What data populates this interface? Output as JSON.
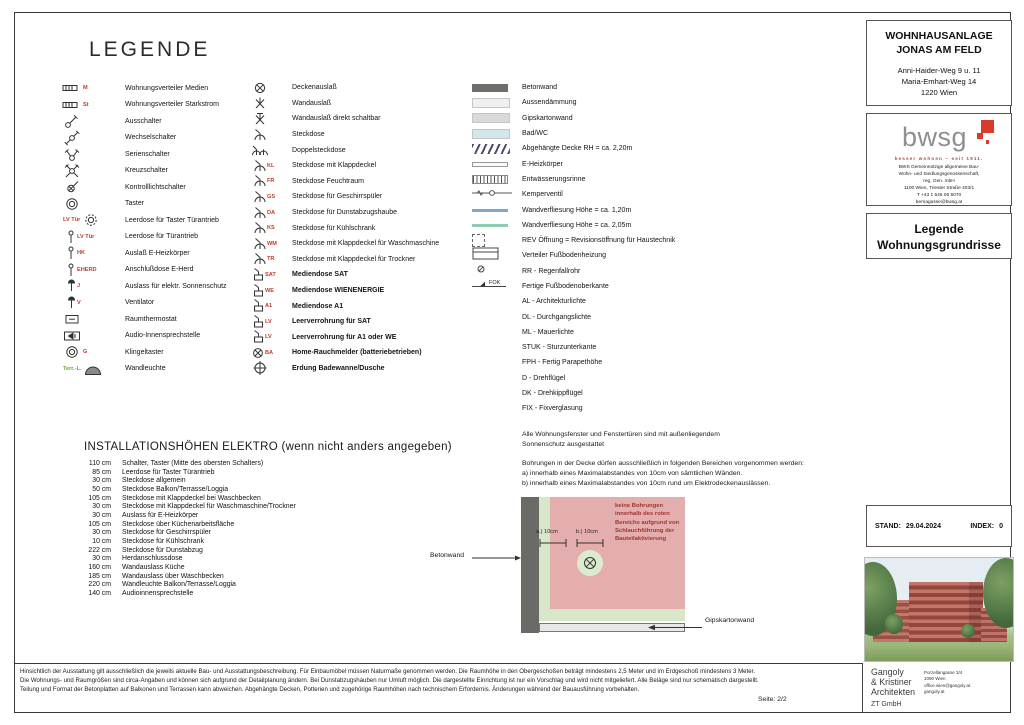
{
  "legend_title": "LEGENDE",
  "legend_col1": [
    {
      "icon": "verteiler",
      "tag": "M",
      "label": "Wohnungsverteiler Medien"
    },
    {
      "icon": "verteiler",
      "tag": "St",
      "label": "Wohnungsverteiler Starkstrom"
    },
    {
      "icon": "ausschalter",
      "label": "Ausschalter"
    },
    {
      "icon": "wechselschalter",
      "label": "Wechselschalter"
    },
    {
      "icon": "serienschalter",
      "label": "Serienschalter"
    },
    {
      "icon": "kreuzschalter",
      "label": "Kreuzschalter"
    },
    {
      "icon": "kontrolllichtschalter",
      "label": "Kontrolllichtschalter"
    },
    {
      "icon": "taster",
      "label": "Taster"
    },
    {
      "icon": "taster-dashed",
      "tag": "LV Tür",
      "tagpos": "prefix",
      "label": "Leerdose für Taster Türantrieb"
    },
    {
      "icon": "pin",
      "tag": "LV Tür",
      "label": "Leerdose für Türantrieb"
    },
    {
      "icon": "pin",
      "tag": "HK",
      "label": "Auslaß E-Heizkörper"
    },
    {
      "icon": "pin",
      "tag": "EHERD",
      "label": "Anschlußdose E-Herd"
    },
    {
      "icon": "dot-stem",
      "tag": "J",
      "label": "Auslass für elektr. Sonnenschutz"
    },
    {
      "icon": "dot-stem",
      "tag": "V",
      "label": "Ventilator"
    },
    {
      "icon": "raumthermostat",
      "label": "Raumthermostat"
    },
    {
      "icon": "audio",
      "label": "Audio-Innensprechstelle"
    },
    {
      "icon": "taster",
      "tag": "G",
      "label": "Klingeltaster"
    },
    {
      "icon": "wandleuchte",
      "tag": "Terr.-L.",
      "tagpos": "prefix",
      "taggreen": true,
      "label": "Wandleuchte"
    }
  ],
  "legend_col2": [
    {
      "icon": "deckenauslass",
      "label": "Deckenauslaß"
    },
    {
      "icon": "wandauslass",
      "label": "Wandauslaß"
    },
    {
      "icon": "wandauslass-schaltbar",
      "label": "Wandauslaß direkt schaltbar"
    },
    {
      "icon": "steckdose",
      "label": "Steckdose"
    },
    {
      "icon": "doppelsteckdose",
      "label": "Doppelsteckdose"
    },
    {
      "icon": "steckdose",
      "tag": "KL",
      "label": "Steckdose mit Klappdeckel"
    },
    {
      "icon": "steckdose",
      "tag": "FR",
      "label": "Steckdose Feuchtraum"
    },
    {
      "icon": "steckdose",
      "tag": "GS",
      "label": "Steckdose für Geschirrspüler"
    },
    {
      "icon": "steckdose",
      "tag": "DA",
      "label": "Steckdose für Dunstabzugshaube"
    },
    {
      "icon": "steckdose",
      "tag": "KS",
      "label": "Steckdose für Kühlschrank"
    },
    {
      "icon": "steckdose",
      "tag": "WM",
      "label": "Steckdose mit Klappdeckel für Waschmaschine"
    },
    {
      "icon": "steckdose",
      "tag": "TR",
      "label": "Steckdose mit Klappdeckel für Trockner"
    },
    {
      "icon": "mediendose",
      "tag": "SAT",
      "label": "Mediendose SAT",
      "bold": true
    },
    {
      "icon": "mediendose",
      "tag": "WE",
      "label": "Mediendose WIENENERGIE",
      "bold": true
    },
    {
      "icon": "mediendose",
      "tag": "A1",
      "label": "Mediendose A1",
      "bold": true
    },
    {
      "icon": "mediendose",
      "tag": "LV",
      "label": "Leerverrohrung für SAT",
      "bold": true
    },
    {
      "icon": "mediendose",
      "tag": "LV",
      "label": "Leerverrohrung für A1 oder WE",
      "bold": true
    },
    {
      "icon": "rauchmelder",
      "tag": "BA",
      "label": "Home-Rauchmelder (batteriebetrieben)",
      "bold": true
    },
    {
      "icon": "erdung",
      "label": "Erdung Badewanne/Dusche",
      "bold": true
    }
  ],
  "legend_col3": [
    {
      "swatch": "solid",
      "color": "#6e6e6a",
      "label": "Betonwand"
    },
    {
      "swatch": "solid",
      "color": "#f0f0ee",
      "label": "Aussendämmung"
    },
    {
      "swatch": "solid",
      "color": "#d9d9d9",
      "label": "Gipskartonwand"
    },
    {
      "swatch": "solid",
      "color": "#d2e6ec",
      "label": "Bad/WC"
    },
    {
      "swatch": "hatch-diag",
      "label": "Abgehängte Decke RH = ca. 2,20m"
    },
    {
      "swatch": "heizkoerper",
      "label": "E-Heizkörper"
    },
    {
      "swatch": "hatch-vert",
      "label": "Entwässerungsrinne"
    },
    {
      "swatch": "kemperventil",
      "label": "Kemperventil"
    },
    {
      "swatch": "line",
      "color": "#7fa8c9",
      "label": "Wandverfliesung Höhe = ca. 1,20m"
    },
    {
      "swatch": "line",
      "color": "#8fcbb0",
      "label": "Wandverfliesung Höhe = ca. 2,05m"
    },
    {
      "swatch": "rev",
      "label": "REV Öffnung = Revisionsöffnung für Haustechnik"
    },
    {
      "swatch": "fbh",
      "label": "Verteiler Fußbodenheizung"
    },
    {
      "swatch": "rr",
      "label": "RR - Regenfallrohr"
    },
    {
      "swatch": "fok",
      "label": "Fertige Fußbodenoberkante"
    },
    {
      "swatch": "none",
      "label": "AL - Architekturlichte"
    },
    {
      "swatch": "none",
      "label": "DL - Durchgangslichte"
    },
    {
      "swatch": "none",
      "label": "ML - Mauerlichte"
    },
    {
      "swatch": "none",
      "label": "STUK - Sturzunterkante"
    },
    {
      "swatch": "none",
      "label": "FPH - Fertig Parapethöhe"
    },
    {
      "swatch": "none",
      "label": "D - Drehflügel"
    },
    {
      "swatch": "none",
      "label": "DK - Drehkippflügel"
    },
    {
      "swatch": "none",
      "label": "FIX - Fixverglasung"
    }
  ],
  "notes": {
    "sonnenschutz_1": "Alle Wohnungsfenster und Fenstertüren sind mit außenliegendem",
    "sonnenschutz_2": "Sonnenschutz ausgestattet",
    "bohrungen_title": "Bohrungen in der Decke dürfen ausschließlich in folgenden Bereichen vorgenommen werden:",
    "bohrungen_a": "a) innerhalb eines Maximalabstandes von 10cm von sämtlichen Wänden.",
    "bohrungen_b": "b) innerhalb eines Maximalabstandes von 10cm rund um Elektrodeckenauslässen."
  },
  "install": {
    "title": "INSTALLATIONSHÖHEN ELEKTRO (wenn nicht anders angegeben)",
    "rows": [
      {
        "height": "110 cm",
        "label": "Schalter, Taster (Mitte des obersten Schalters)"
      },
      {
        "height": "85 cm",
        "label": "Leerdose für Taster Türantrieb"
      },
      {
        "height": "30 cm",
        "label": "Steckdose allgemein"
      },
      {
        "height": "50 cm",
        "label": "Steckdose Balkon/Terrasse/Loggia"
      },
      {
        "height": "105 cm",
        "label": "Steckdose mit Klappdeckel bei Waschbecken"
      },
      {
        "height": "30 cm",
        "label": "Steckdose mit Klappdeckel für Waschmaschine/Trockner"
      },
      {
        "height": "30 cm",
        "label": "Auslass für E-Heizkörper"
      },
      {
        "height": "105 cm",
        "label": "Steckdose über Küchenarbeitsfläche"
      },
      {
        "height": "30 cm",
        "label": "Steckdose für Geschirrspüler"
      },
      {
        "height": "10 cm",
        "label": "Steckdose für Kühlschrank"
      },
      {
        "height": "222 cm",
        "label": "Steckdose für Dunstabzug"
      },
      {
        "height": "30 cm",
        "label": "Herdanschlussdose"
      },
      {
        "height": "160 cm",
        "label": "Wandauslass Küche"
      },
      {
        "height": "185 cm",
        "label": "Wandauslass über Waschbecken"
      },
      {
        "height": "220 cm",
        "label": "Wandleuchte Balkon/Terrasse/Loggia"
      },
      {
        "height": "140 cm",
        "label": "Audioinnensprechstelle"
      }
    ]
  },
  "detail": {
    "betonwand_label": "Betonwand",
    "gipskarton_label": "Gipskartonwand",
    "dim_a": "a.) 10cm",
    "dim_b": "b.) 10cm",
    "warning": "keine Bohrungen innerhalb des roten Bereichs aufgrund von Schlauchführung der Bauteilaktivierung"
  },
  "project_box": {
    "title_1": "WOHNHAUSANLAGE",
    "title_2": "JONAS AM FELD",
    "addr_1": "Anni-Haider-Weg 9 u. 11",
    "addr_2": "Maria-Emhart-Weg 14",
    "addr_3": "1220 Wien"
  },
  "bwsg_box": {
    "logo_text": "bwsg",
    "tagline": "besser wohnen – seit 1911.",
    "addr_1": "BWS Gemeinnützige allgemeine Bau-",
    "addr_2": "Wohn- und Siedlungsgenossenschaft,",
    "addr_3": "reg. Gen. mbH",
    "addr_4": "1100 Wien, Triester Straße 403/1",
    "addr_5": "T +43 1 546 06 5070",
    "addr_6": "bernagasse@bwsg.at"
  },
  "legend_box": {
    "line_1": "Legende",
    "line_2": "Wohnungsgrundrisse"
  },
  "stand_box": {
    "stand_label": "STAND:",
    "stand_value": "29.04.2024",
    "index_label": "INDEX:",
    "index_value": "0"
  },
  "architect_box": {
    "name_1": "Gangoly",
    "name_2": "& Kristiner",
    "name_3": "Architekten",
    "name_4": "ZT GmbH",
    "addr_1": "Porzellangasse 3/4",
    "addr_2": "1090 Wien",
    "addr_3": "office.wien@gangoly.at",
    "addr_4": "gangoly.at"
  },
  "footer": {
    "lines": [
      "Hinsichtlich der Ausstattung gilt ausschließlich die jeweils aktuelle Bau- und Ausstattungsbeschreibung. Für Einbaumöbel müssen Naturmaße genommen werden. Die Raumhöhe in den Obergeschoßen beträgt mindestens 2,5 Meter und im Erdgeschoß mindestens 3 Meter.",
      "Die Wohnungs- und Raumgrößen sind circa-Angaben und können sich aufgrund der Detailplanung ändern. Bei Dunstabzugshauben nur Umluft möglich. Die dargestellte Einrichtung ist nur ein Vorschlag und wird nicht mitgeliefert. Alle Beläge sind nur schematisch dargestellt.",
      "Teilung und Format der Betonplatten auf Balkonen und Terrassen kann abweichen. Abgehängte Decken, Potterien und zugehörige Raumhöhen nach technischem Erfordernis. Änderungen während der Bauausführung vorbehalten."
    ],
    "page_label": "Seite: 2/2"
  },
  "colors": {
    "accent_red": "#c4382a",
    "bwsg_red": "#d93a2b",
    "detail_pink": "#e5aeae",
    "detail_green": "#d9e7c9",
    "beton_gray": "#6a6a66"
  }
}
